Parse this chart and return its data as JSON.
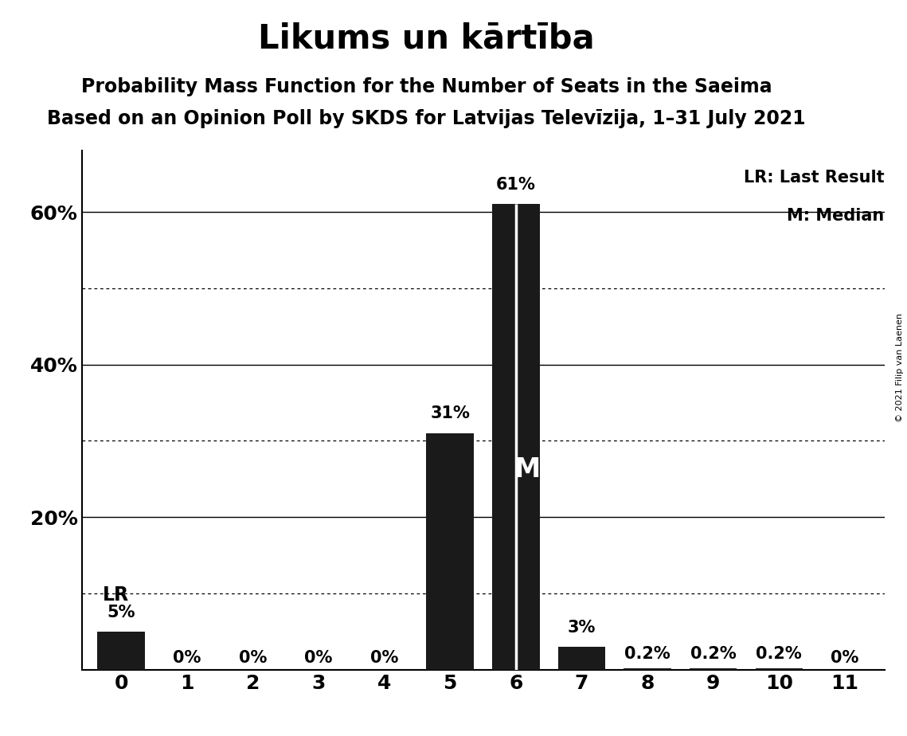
{
  "title": "Likums un kārtība",
  "subtitle1": "Probability Mass Function for the Number of Seats in the Saeima",
  "subtitle2": "Based on an Opinion Poll by SKDS for Latvijas Televīzija, 1–31 July 2021",
  "copyright": "© 2021 Filip van Laenen",
  "categories": [
    0,
    1,
    2,
    3,
    4,
    5,
    6,
    7,
    8,
    9,
    10,
    11
  ],
  "values": [
    5.0,
    0.0,
    0.0,
    0.0,
    0.0,
    31.0,
    61.0,
    3.0,
    0.2,
    0.2,
    0.2,
    0.0
  ],
  "bar_color": "#1a1a1a",
  "background_color": "#ffffff",
  "ylim_max": 68,
  "ytick_labels": [
    "20%",
    "40%",
    "60%"
  ],
  "ytick_values": [
    20,
    40,
    60
  ],
  "solid_gridlines": [
    20,
    40,
    60
  ],
  "dotted_gridlines": [
    10,
    30,
    50
  ],
  "lr_bar": 0,
  "median_bar": 6,
  "lr_label": "LR",
  "median_label": "M",
  "legend_lr": "LR: Last Result",
  "legend_m": "M: Median",
  "bar_labels": [
    "5%",
    "0%",
    "0%",
    "0%",
    "0%",
    "31%",
    "61%",
    "3%",
    "0.2%",
    "0.2%",
    "0.2%",
    "0%"
  ],
  "title_fontsize": 30,
  "subtitle1_fontsize": 17,
  "subtitle2_fontsize": 17,
  "bar_label_fontsize": 15,
  "tick_fontsize": 18,
  "legend_fontsize": 15,
  "lr_fontsize": 17,
  "median_fontsize": 24,
  "copyright_fontsize": 8
}
